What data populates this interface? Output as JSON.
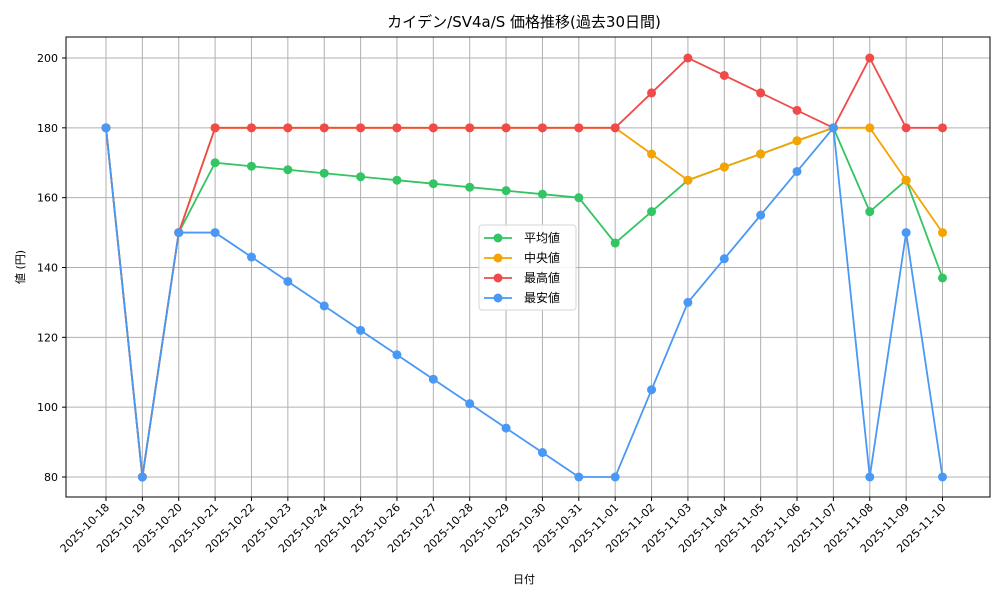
{
  "chart_data": {
    "type": "line",
    "title": "カイデン/SV4a/S 価格推移(過去30日間)",
    "xlabel": "日付",
    "ylabel": "値 (円)",
    "ylim": [
      74,
      206
    ],
    "yticks": [
      80,
      100,
      120,
      140,
      160,
      180,
      200
    ],
    "grid": true,
    "legend_position": "center",
    "categories": [
      "2025-10-18",
      "2025-10-19",
      "2025-10-20",
      "2025-10-21",
      "2025-10-22",
      "2025-10-23",
      "2025-10-24",
      "2025-10-25",
      "2025-10-26",
      "2025-10-27",
      "2025-10-28",
      "2025-10-29",
      "2025-10-30",
      "2025-10-31",
      "2025-11-01",
      "2025-11-02",
      "2025-11-03",
      "2025-11-04",
      "2025-11-05",
      "2025-11-06",
      "2025-11-07",
      "2025-11-08",
      "2025-11-09",
      "2025-11-10"
    ],
    "series": [
      {
        "name": "平均値",
        "color": "#33c463",
        "values": [
          180,
          80,
          150,
          170,
          169,
          168,
          167,
          166,
          165,
          164,
          163,
          162,
          161,
          160,
          147,
          156,
          165,
          168.8,
          172.5,
          176.3,
          180,
          156,
          165,
          137
        ]
      },
      {
        "name": "中央値",
        "color": "#f5a300",
        "values": [
          180,
          80,
          150,
          180,
          180,
          180,
          180,
          180,
          180,
          180,
          180,
          180,
          180,
          180,
          180,
          172.5,
          165,
          168.8,
          172.5,
          176.3,
          180,
          180,
          165,
          150
        ]
      },
      {
        "name": "最高値",
        "color": "#f04a4a",
        "values": [
          180,
          80,
          150,
          180,
          180,
          180,
          180,
          180,
          180,
          180,
          180,
          180,
          180,
          180,
          180,
          190,
          200,
          195,
          190,
          185,
          180,
          200,
          180,
          180
        ]
      },
      {
        "name": "最安値",
        "color": "#4a98f5",
        "values": [
          180,
          80,
          150,
          150,
          143,
          136,
          129,
          122,
          115,
          108,
          101,
          94,
          87,
          80,
          80,
          105,
          130,
          142.5,
          155,
          167.5,
          180,
          80,
          150,
          80
        ]
      }
    ]
  }
}
